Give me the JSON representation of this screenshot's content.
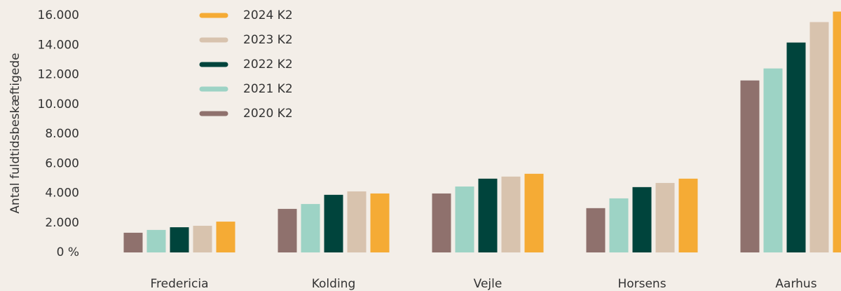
{
  "chart_data": {
    "type": "bar",
    "y_label": "Antal fuldtidsbeskæftigede",
    "categories": [
      "Fredericia",
      "Kolding",
      "Vejle",
      "Horsens",
      "Aarhus"
    ],
    "series": [
      {
        "name": "2020 K2",
        "color": "#8f716d",
        "values": [
          1330,
          2940,
          3980,
          2990,
          11610
        ]
      },
      {
        "name": "2021 K2",
        "color": "#9dd3c5",
        "values": [
          1520,
          3270,
          4450,
          3650,
          12420
        ]
      },
      {
        "name": "2022 K2",
        "color": "#00443c",
        "values": [
          1700,
          3890,
          4980,
          4410,
          14170
        ]
      },
      {
        "name": "2023 K2",
        "color": "#d8c3ae",
        "values": [
          1800,
          4120,
          5120,
          4690,
          15550
        ]
      },
      {
        "name": "2024 K2",
        "color": "#f5ab35",
        "values": [
          2080,
          3980,
          5310,
          4980,
          16260
        ]
      }
    ],
    "ylim": [
      0,
      16300
    ],
    "yticks": [
      {
        "value": 0,
        "label": "0 %"
      },
      {
        "value": 2000,
        "label": "2.000"
      },
      {
        "value": 4000,
        "label": "4.000"
      },
      {
        "value": 6000,
        "label": "6.000"
      },
      {
        "value": 8000,
        "label": "8.000"
      },
      {
        "value": 10000,
        "label": "10.000"
      },
      {
        "value": 12000,
        "label": "12.000"
      },
      {
        "value": 14000,
        "label": "14.000"
      },
      {
        "value": 16000,
        "label": "16.000"
      }
    ],
    "grid": false,
    "legend": "top-left"
  }
}
